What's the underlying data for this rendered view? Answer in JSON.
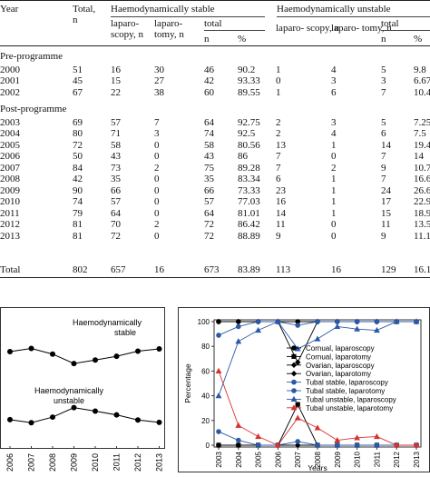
{
  "table": {
    "headers": {
      "year": "Year",
      "total_line1": "Total,",
      "total_line2": "n",
      "stable_group": "Haemodynamically stable",
      "unstable_group": "Haemodynamically unstable",
      "lap_line1": "laparo-",
      "lap_line2": "scopy, n",
      "lapt_line1": "laparo-",
      "lapt_line2": "tomy, n",
      "total_sub": "total",
      "n": "n",
      "pct": "%",
      "uns_lap": "laparo- scopy, n",
      "uns_lapt": "laparo- tomy, n"
    },
    "sections": [
      {
        "label": "Pre-programme",
        "rows": [
          [
            "2000",
            "51",
            "16",
            "30",
            "46",
            "90.2",
            "1",
            "4",
            "5",
            "9.8"
          ],
          [
            "2001",
            "45",
            "15",
            "27",
            "42",
            "93.33",
            "0",
            "3",
            "3",
            "6.67"
          ],
          [
            "2002",
            "67",
            "22",
            "38",
            "60",
            "89.55",
            "1",
            "6",
            "7",
            "10.45"
          ]
        ]
      },
      {
        "label": "Post-programme",
        "rows": [
          [
            "2003",
            "69",
            "57",
            "7",
            "64",
            "92.75",
            "2",
            "3",
            "5",
            "7.25"
          ],
          [
            "2004",
            "80",
            "71",
            "3",
            "74",
            "92.5",
            "2",
            "4",
            "6",
            "7.5"
          ],
          [
            "2005",
            "72",
            "58",
            "0",
            "58",
            "80.56",
            "13",
            "1",
            "14",
            "19.44"
          ],
          [
            "2006",
            "50",
            "43",
            "0",
            "43",
            "86",
            "7",
            "0",
            "7",
            "14"
          ],
          [
            "2007",
            "84",
            "73",
            "2",
            "75",
            "89.28",
            "7",
            "2",
            "9",
            "10.71"
          ],
          [
            "2008",
            "42",
            "35",
            "0",
            "35",
            "83.34",
            "6",
            "1",
            "7",
            "16.67"
          ],
          [
            "2009",
            "90",
            "66",
            "0",
            "66",
            "73.33",
            "23",
            "1",
            "24",
            "26.67"
          ],
          [
            "2010",
            "74",
            "57",
            "0",
            "57",
            "77.03",
            "16",
            "1",
            "17",
            "22.97"
          ],
          [
            "2011",
            "79",
            "64",
            "0",
            "64",
            "81.01",
            "14",
            "1",
            "15",
            "18.99"
          ],
          [
            "2012",
            "81",
            "70",
            "2",
            "72",
            "86.42",
            "11",
            "0",
            "11",
            "13.58"
          ],
          [
            "2013",
            "81",
            "72",
            "0",
            "72",
            "88.89",
            "9",
            "0",
            "9",
            "11.11"
          ]
        ]
      }
    ],
    "total_row": [
      "Total",
      "802",
      "657",
      "16",
      "673",
      "83.89",
      "113",
      "16",
      "129",
      "16.10"
    ]
  },
  "left_chart": {
    "label_stable_1": "Haemodynamically",
    "label_stable_2": "stable",
    "label_unstable_1": "Haemodynamically",
    "label_unstable_2": "unstable",
    "chart_data": {
      "type": "line",
      "x": [
        "2006",
        "2007",
        "2008",
        "2009",
        "2010",
        "2011",
        "2012",
        "2013"
      ],
      "series": [
        {
          "name": "Haemodynamically stable",
          "values": [
            86,
            89.28,
            83.34,
            73.33,
            77.03,
            81.01,
            86.42,
            88.89
          ]
        },
        {
          "name": "Haemodynamically unstable",
          "values": [
            14,
            10.71,
            16.67,
            26.67,
            22.97,
            18.99,
            13.58,
            11.11
          ]
        }
      ]
    }
  },
  "right_chart": {
    "chart_data": {
      "type": "line",
      "ylabel": "Percentage",
      "xlabel": "Years",
      "ylim": [
        0,
        100
      ],
      "yticks": [
        "0",
        "20",
        "40",
        "60",
        "80",
        "100"
      ],
      "x": [
        "2003",
        "2004",
        "2005",
        "2006",
        "2007",
        "2008",
        "2009",
        "2010",
        "2011",
        "2012",
        "2013"
      ],
      "series": [
        {
          "name": "Cornual, laparoscopy",
          "color": "#000000",
          "marker": "circle",
          "values": [
            100,
            100,
            100,
            100,
            100,
            100,
            100,
            100,
            100,
            100,
            100
          ]
        },
        {
          "name": "Cornual, laparotomy",
          "color": "#000000",
          "marker": "square",
          "values": [
            0,
            0,
            0,
            0,
            33,
            0,
            0,
            0,
            0,
            0,
            0
          ]
        },
        {
          "name": "Ovarian, laparoscopy",
          "color": "#000000",
          "marker": "diamond",
          "values": [
            100,
            100,
            100,
            100,
            67,
            100,
            100,
            100,
            100,
            100,
            100
          ]
        },
        {
          "name": "Ovarian, laparotomy",
          "color": "#000000",
          "marker": "diamond",
          "values": [
            0,
            0,
            0,
            0,
            0,
            0,
            0,
            0,
            0,
            0,
            0
          ]
        },
        {
          "name": "Tubal stable, laparoscopy",
          "color": "#2a59a8",
          "marker": "circle",
          "values": [
            89,
            96,
            100,
            100,
            97,
            100,
            100,
            100,
            100,
            100,
            100
          ]
        },
        {
          "name": "Tubal stable, laparotomy",
          "color": "#2a59a8",
          "marker": "circle",
          "values": [
            11,
            4,
            0,
            0,
            3,
            0,
            0,
            0,
            0,
            0,
            0
          ]
        },
        {
          "name": "Tubal unstable, laparoscopy",
          "color": "#2a59a8",
          "marker": "triangle",
          "values": [
            40,
            84,
            93,
            100,
            78,
            86,
            96,
            94,
            93,
            100,
            100
          ]
        },
        {
          "name": "Tubal unstable, laparotomy",
          "color": "#d6322e",
          "marker": "triangle",
          "values": [
            60,
            16,
            7,
            0,
            22,
            14,
            4,
            6,
            7,
            0,
            0
          ]
        }
      ]
    }
  }
}
